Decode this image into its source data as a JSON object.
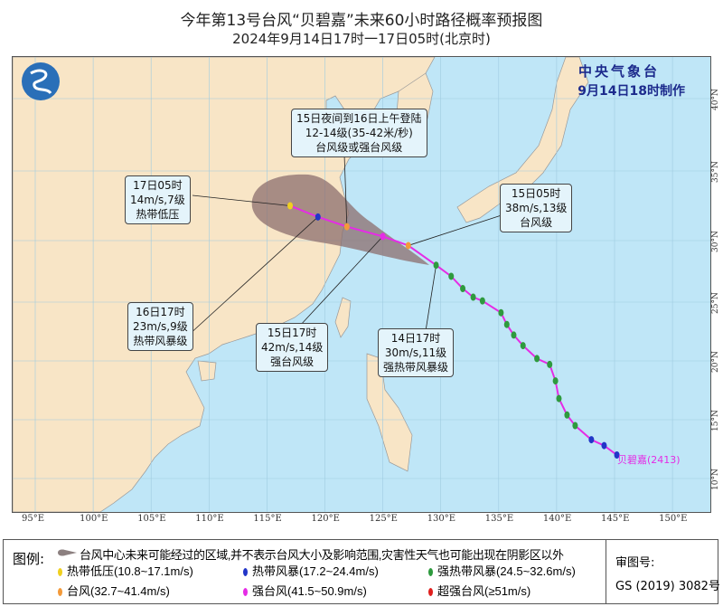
{
  "title": "今年第13号台风“贝碧嘉”未来60小时路径概率预报图",
  "subtitle": "2024年9月14日17时一17日05时(北京时)",
  "agency": {
    "name": "中央气象台",
    "issued": "9月14日18时制作"
  },
  "storm_label": "贝碧嘉(2413)",
  "axes": {
    "lon_labels": [
      "95°E",
      "100°E",
      "105°E",
      "110°E",
      "115°E",
      "120°E",
      "125°E",
      "130°E",
      "135°E",
      "140°E",
      "145°E",
      "150°E"
    ],
    "lat_labels": [
      "40°N",
      "35°N",
      "30°N",
      "25°N",
      "20°N",
      "15°N",
      "10°N"
    ]
  },
  "colors": {
    "sea": "#bfe6f7",
    "land": "#f8e5c6",
    "cone": "#8c6e6e",
    "track": "#e52ce5",
    "td": "#f0d020",
    "ts": "#2236c8",
    "sts": "#2e9a3e",
    "ty": "#f39a3a",
    "sty": "#e52ce5",
    "superty": "#e0201e"
  },
  "forecast_points": [
    {
      "label": "14日17时",
      "lon": 129.6,
      "lat": 28.0,
      "grade": "sts",
      "lines": [
        "14日17时",
        "30m/s,11级",
        "强热带风暴级"
      ]
    },
    {
      "label": "15日05时",
      "lon": 127.2,
      "lat": 29.6,
      "grade": "ty",
      "lines": [
        "15日05时",
        "38m/s,13级",
        "台风级"
      ]
    },
    {
      "label": "15日17时",
      "lon": 125.0,
      "lat": 30.3,
      "grade": "sty",
      "lines": [
        "15日17时",
        "42m/s,14级",
        "强台风级"
      ]
    },
    {
      "label": "登陆",
      "lon": 121.9,
      "lat": 31.0,
      "grade": "ty",
      "lines": [
        "15日夜间到16日上午登陆",
        "12-14级(35-42米/秒)",
        "台风级或强台风级"
      ]
    },
    {
      "label": "16日17时",
      "lon": 119.4,
      "lat": 31.7,
      "grade": "ts",
      "lines": [
        "16日17时",
        "23m/s,9级",
        "热带风暴级"
      ]
    },
    {
      "label": "17日05时",
      "lon": 117.0,
      "lat": 32.5,
      "grade": "td",
      "lines": [
        "17日05时",
        "14m/s,7级",
        "热带低压"
      ]
    }
  ],
  "past_track": [
    {
      "lon": 145.2,
      "lat": 12.0,
      "grade": "ts"
    },
    {
      "lon": 144.1,
      "lat": 12.8,
      "grade": "ts"
    },
    {
      "lon": 143.0,
      "lat": 13.3,
      "grade": "ts"
    },
    {
      "lon": 141.6,
      "lat": 14.5,
      "grade": "sts"
    },
    {
      "lon": 140.9,
      "lat": 15.4,
      "grade": "sts"
    },
    {
      "lon": 140.2,
      "lat": 16.8,
      "grade": "sts"
    },
    {
      "lon": 139.9,
      "lat": 18.3,
      "grade": "sts"
    },
    {
      "lon": 139.4,
      "lat": 19.7,
      "grade": "sts"
    },
    {
      "lon": 138.3,
      "lat": 20.2,
      "grade": "sts"
    },
    {
      "lon": 137.1,
      "lat": 21.3,
      "grade": "sts"
    },
    {
      "lon": 136.3,
      "lat": 22.2,
      "grade": "sts"
    },
    {
      "lon": 135.7,
      "lat": 23.1,
      "grade": "sts"
    },
    {
      "lon": 135.2,
      "lat": 24.1,
      "grade": "sts"
    },
    {
      "lon": 133.6,
      "lat": 25.1,
      "grade": "sts"
    },
    {
      "lon": 132.8,
      "lat": 25.4,
      "grade": "sts"
    },
    {
      "lon": 131.9,
      "lat": 26.1,
      "grade": "sts"
    },
    {
      "lon": 130.9,
      "lat": 27.1,
      "grade": "sts"
    },
    {
      "lon": 129.6,
      "lat": 28.0,
      "grade": "sts"
    }
  ],
  "legend": {
    "title": "图例:",
    "cone_note": "台风中心未来可能经过的区域,并不表示台风大小及影响范围,灾害性天气也可能出现在阴影区以外",
    "items": [
      {
        "label": "热带低压(10.8~17.1m/s)",
        "grade": "td"
      },
      {
        "label": "热带风暴(17.2~24.4m/s)",
        "grade": "ts"
      },
      {
        "label": "强热带风暴(24.5~32.6m/s)",
        "grade": "sts"
      },
      {
        "label": "台风(32.7~41.4m/s)",
        "grade": "ty"
      },
      {
        "label": "强台风(41.5~50.9m/s)",
        "grade": "sty"
      },
      {
        "label": "超强台风(≥51m/s)",
        "grade": "superty"
      }
    ],
    "approval_label": "审图号:",
    "approval_number": "GS (2019) 3082号"
  }
}
